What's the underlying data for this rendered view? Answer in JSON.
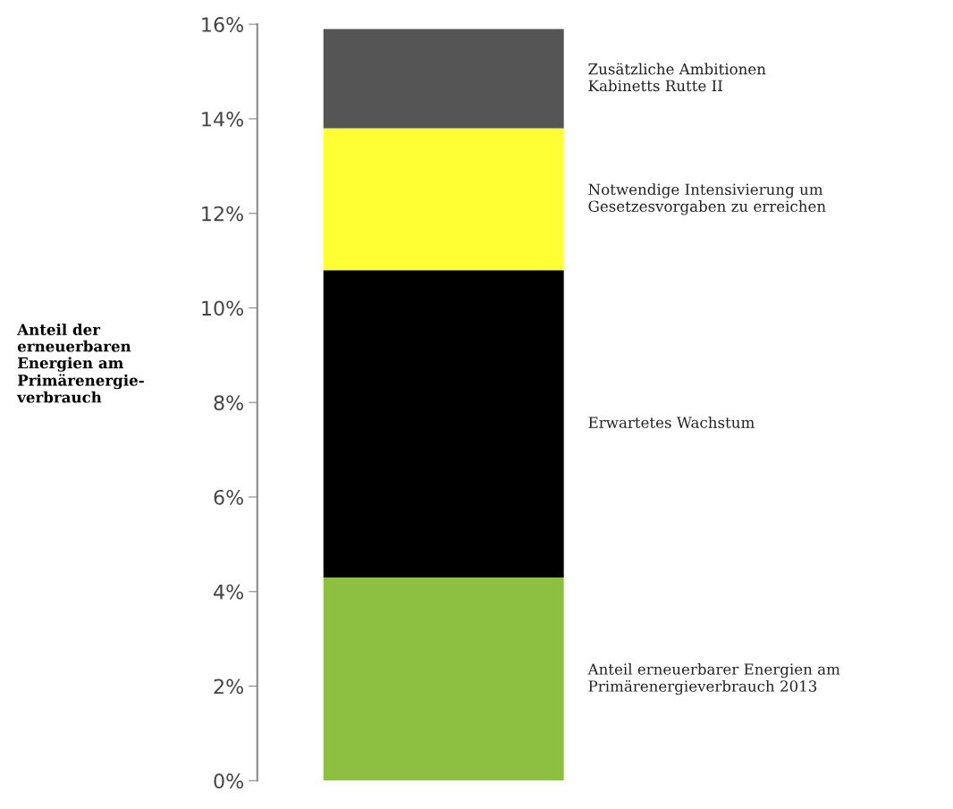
{
  "chart_data": {
    "type": "bar",
    "stacked": true,
    "ylabel": "Anteil der\nerneuerbaren\nEnergien am\nPrimärenergie-\nverbrauch",
    "categories": [
      null
    ],
    "series": [
      {
        "name": "Anteil erneuerbarer Energien am\nPrimärenergieverbrauch 2013",
        "color": "#8dbf41",
        "values": [
          4.3
        ]
      },
      {
        "name": "Erwartetes Wachstum",
        "color": "#000000",
        "values": [
          6.5
        ]
      },
      {
        "name": "Notwendige Intensivierung um\nGesetzesvorgaben zu erreichen",
        "color": "#ffff33",
        "values": [
          3.0
        ]
      },
      {
        "name": "Zusätzliche Ambitionen\nKabinetts Rutte II",
        "color": "#555555",
        "values": [
          2.1
        ]
      }
    ],
    "ylim": [
      0,
      16
    ],
    "yticks": [
      {
        "value": 0,
        "label": "0%"
      },
      {
        "value": 2,
        "label": "2%"
      },
      {
        "value": 4,
        "label": "4%"
      },
      {
        "value": 6,
        "label": "6%"
      },
      {
        "value": 8,
        "label": "8%"
      },
      {
        "value": 10,
        "label": "10%"
      },
      {
        "value": 12,
        "label": "12%"
      },
      {
        "value": 14,
        "label": "14%"
      },
      {
        "value": 16,
        "label": "16%"
      }
    ],
    "grid": false,
    "legend": false
  }
}
